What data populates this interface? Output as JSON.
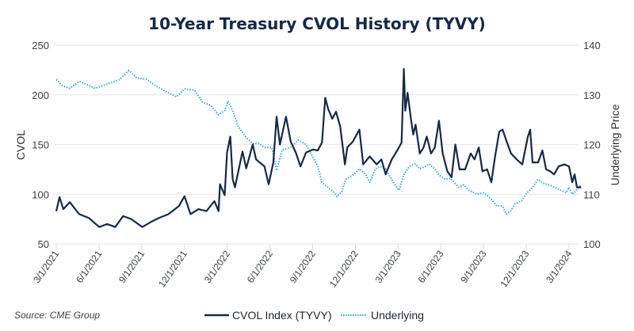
{
  "chart_data": {
    "type": "line",
    "title": "10-Year Treasury CVOL History (TYVY)",
    "ylabel": "CVOL",
    "y2label": "Underlying Price",
    "ylim": [
      50,
      250
    ],
    "y2lim": [
      100,
      140
    ],
    "yticks": [
      "250",
      "200",
      "150",
      "100",
      "50"
    ],
    "y2ticks": [
      "140",
      "130",
      "120",
      "110",
      "100"
    ],
    "xticks": [
      "3/1/2021",
      "6/1/2021",
      "9/1/2021",
      "12/1/2021",
      "3/1/2022",
      "6/1/2022",
      "9/1/2022",
      "12/1/2022",
      "3/1/2023",
      "6/1/2023",
      "9/1/2023",
      "12/1/2023",
      "3/1/2024"
    ],
    "grid": "horizontal",
    "legend_position": "bottom",
    "source": "Source: CME Group",
    "colors": {
      "cvol": "#14294a",
      "underlying": "#29abe2",
      "title": "#14294a"
    },
    "series": [
      {
        "name": "CVOL Index (TYVY)",
        "axis": "left",
        "style": "solid",
        "points": [
          [
            "2021-03-01",
            83
          ],
          [
            "2021-03-08",
            97
          ],
          [
            "2021-03-16",
            85
          ],
          [
            "2021-03-30",
            92
          ],
          [
            "2021-04-19",
            80
          ],
          [
            "2021-05-10",
            76
          ],
          [
            "2021-06-01",
            67
          ],
          [
            "2021-06-18",
            70
          ],
          [
            "2021-07-05",
            67
          ],
          [
            "2021-07-22",
            78
          ],
          [
            "2021-08-08",
            75
          ],
          [
            "2021-09-01",
            67
          ],
          [
            "2021-09-19",
            72
          ],
          [
            "2021-10-06",
            76
          ],
          [
            "2021-10-27",
            80
          ],
          [
            "2021-11-18",
            88
          ],
          [
            "2021-11-30",
            98
          ],
          [
            "2021-12-13",
            80
          ],
          [
            "2021-12-30",
            85
          ],
          [
            "2022-01-16",
            83
          ],
          [
            "2022-02-02",
            93
          ],
          [
            "2022-02-11",
            83
          ],
          [
            "2022-02-14",
            110
          ],
          [
            "2022-02-24",
            99
          ],
          [
            "2022-03-01",
            142
          ],
          [
            "2022-03-08",
            158
          ],
          [
            "2022-03-13",
            115
          ],
          [
            "2022-03-18",
            107
          ],
          [
            "2022-04-03",
            143
          ],
          [
            "2022-04-11",
            126
          ],
          [
            "2022-04-25",
            150
          ],
          [
            "2022-05-02",
            135
          ],
          [
            "2022-05-20",
            128
          ],
          [
            "2022-05-29",
            110
          ],
          [
            "2022-06-08",
            132
          ],
          [
            "2022-06-15",
            178
          ],
          [
            "2022-06-22",
            150
          ],
          [
            "2022-07-05",
            178
          ],
          [
            "2022-07-15",
            153
          ],
          [
            "2022-07-26",
            142
          ],
          [
            "2022-08-05",
            128
          ],
          [
            "2022-08-17",
            142
          ],
          [
            "2022-09-01",
            145
          ],
          [
            "2022-09-11",
            144
          ],
          [
            "2022-09-20",
            152
          ],
          [
            "2022-09-27",
            197
          ],
          [
            "2022-10-03",
            186
          ],
          [
            "2022-10-12",
            176
          ],
          [
            "2022-10-20",
            183
          ],
          [
            "2022-10-29",
            168
          ],
          [
            "2022-11-08",
            130
          ],
          [
            "2022-11-13",
            147
          ],
          [
            "2022-11-25",
            153
          ],
          [
            "2022-12-09",
            165
          ],
          [
            "2022-12-17",
            130
          ],
          [
            "2022-12-31",
            138
          ],
          [
            "2023-01-15",
            130
          ],
          [
            "2023-01-25",
            135
          ],
          [
            "2023-02-03",
            120
          ],
          [
            "2023-02-16",
            135
          ],
          [
            "2023-02-28",
            144
          ],
          [
            "2023-03-09",
            152
          ],
          [
            "2023-03-14",
            226
          ],
          [
            "2023-03-17",
            184
          ],
          [
            "2023-03-22",
            202
          ],
          [
            "2023-03-29",
            176
          ],
          [
            "2023-04-03",
            160
          ],
          [
            "2023-04-08",
            170
          ],
          [
            "2023-04-17",
            141
          ],
          [
            "2023-04-25",
            147
          ],
          [
            "2023-05-02",
            158
          ],
          [
            "2023-05-11",
            141
          ],
          [
            "2023-05-19",
            147
          ],
          [
            "2023-05-28",
            174
          ],
          [
            "2023-06-05",
            141
          ],
          [
            "2023-06-15",
            123
          ],
          [
            "2023-06-24",
            117
          ],
          [
            "2023-07-02",
            150
          ],
          [
            "2023-07-11",
            125
          ],
          [
            "2023-07-23",
            125
          ],
          [
            "2023-08-04",
            141
          ],
          [
            "2023-08-12",
            135
          ],
          [
            "2023-08-21",
            147
          ],
          [
            "2023-08-29",
            123
          ],
          [
            "2023-09-08",
            125
          ],
          [
            "2023-09-17",
            112
          ],
          [
            "2023-09-25",
            138
          ],
          [
            "2023-10-04",
            163
          ],
          [
            "2023-10-11",
            165
          ],
          [
            "2023-10-19",
            154
          ],
          [
            "2023-10-29",
            141
          ],
          [
            "2023-11-10",
            135
          ],
          [
            "2023-11-22",
            130
          ],
          [
            "2023-12-04",
            158
          ],
          [
            "2023-12-09",
            165
          ],
          [
            "2023-12-14",
            132
          ],
          [
            "2023-12-26",
            132
          ],
          [
            "2024-01-04",
            144
          ],
          [
            "2024-01-12",
            125
          ],
          [
            "2024-01-21",
            123
          ],
          [
            "2024-01-29",
            120
          ],
          [
            "2024-02-08",
            128
          ],
          [
            "2024-02-20",
            130
          ],
          [
            "2024-03-01",
            128
          ],
          [
            "2024-03-08",
            112
          ],
          [
            "2024-03-13",
            120
          ],
          [
            "2024-03-18",
            107
          ],
          [
            "2024-03-27",
            107
          ]
        ]
      },
      {
        "name": "Underlying",
        "axis": "right",
        "style": "dotted",
        "points": [
          [
            "2021-03-01",
            133.1
          ],
          [
            "2021-03-13",
            131.9
          ],
          [
            "2021-03-30",
            131.3
          ],
          [
            "2021-04-19",
            132.7
          ],
          [
            "2021-05-10",
            131.9
          ],
          [
            "2021-05-23",
            131.3
          ],
          [
            "2021-06-18",
            132.2
          ],
          [
            "2021-07-13",
            133.0
          ],
          [
            "2021-08-03",
            134.9
          ],
          [
            "2021-08-20",
            133.4
          ],
          [
            "2021-09-11",
            133.1
          ],
          [
            "2021-09-28",
            131.9
          ],
          [
            "2021-10-23",
            130.6
          ],
          [
            "2021-11-13",
            129.6
          ],
          [
            "2021-11-30",
            131.2
          ],
          [
            "2021-12-22",
            130.9
          ],
          [
            "2022-01-08",
            128.5
          ],
          [
            "2022-01-25",
            127.9
          ],
          [
            "2022-02-11",
            126.0
          ],
          [
            "2022-02-24",
            126.8
          ],
          [
            "2022-03-03",
            128.7
          ],
          [
            "2022-03-13",
            126.8
          ],
          [
            "2022-03-25",
            123.6
          ],
          [
            "2022-04-11",
            121.4
          ],
          [
            "2022-04-25",
            120.2
          ],
          [
            "2022-05-07",
            120.2
          ],
          [
            "2022-05-20",
            119.4
          ],
          [
            "2022-06-05",
            119.4
          ],
          [
            "2022-06-15",
            114.8
          ],
          [
            "2022-06-27",
            118.9
          ],
          [
            "2022-07-14",
            119.4
          ],
          [
            "2022-07-31",
            120.9
          ],
          [
            "2022-08-17",
            120.0
          ],
          [
            "2022-09-03",
            117.0
          ],
          [
            "2022-09-11",
            115.6
          ],
          [
            "2022-09-20",
            112.4
          ],
          [
            "2022-09-28",
            111.7
          ],
          [
            "2022-10-15",
            110.4
          ],
          [
            "2022-10-22",
            109.5
          ],
          [
            "2022-11-01",
            110.5
          ],
          [
            "2022-11-10",
            113.0
          ],
          [
            "2022-11-27",
            114.0
          ],
          [
            "2022-12-09",
            115.1
          ],
          [
            "2022-12-22",
            114.0
          ],
          [
            "2022-12-31",
            112.4
          ],
          [
            "2023-01-12",
            115.1
          ],
          [
            "2023-01-22",
            115.6
          ],
          [
            "2023-02-03",
            115.1
          ],
          [
            "2023-02-20",
            112.3
          ],
          [
            "2023-03-04",
            110.8
          ],
          [
            "2023-03-14",
            114.0
          ],
          [
            "2023-03-26",
            115.6
          ],
          [
            "2023-04-07",
            116.1
          ],
          [
            "2023-04-17",
            115.1
          ],
          [
            "2023-04-29",
            115.6
          ],
          [
            "2023-05-07",
            116.1
          ],
          [
            "2023-05-19",
            115.1
          ],
          [
            "2023-05-29",
            113.8
          ],
          [
            "2023-06-10",
            113.0
          ],
          [
            "2023-06-22",
            113.2
          ],
          [
            "2023-07-09",
            111.4
          ],
          [
            "2023-07-19",
            111.9
          ],
          [
            "2023-07-31",
            110.8
          ],
          [
            "2023-08-17",
            110.0
          ],
          [
            "2023-08-31",
            110.3
          ],
          [
            "2023-09-15",
            109.2
          ],
          [
            "2023-09-29",
            107.6
          ],
          [
            "2023-10-11",
            107.6
          ],
          [
            "2023-10-19",
            106.0
          ],
          [
            "2023-10-28",
            106.6
          ],
          [
            "2023-11-07",
            108.1
          ],
          [
            "2023-11-21",
            108.7
          ],
          [
            "2023-12-02",
            110.3
          ],
          [
            "2023-12-14",
            111.4
          ],
          [
            "2023-12-26",
            113.0
          ],
          [
            "2024-01-05",
            112.2
          ],
          [
            "2024-01-17",
            111.9
          ],
          [
            "2024-01-31",
            111.4
          ],
          [
            "2024-02-12",
            110.8
          ],
          [
            "2024-02-24",
            110.3
          ],
          [
            "2024-03-01",
            111.4
          ],
          [
            "2024-03-08",
            110.0
          ],
          [
            "2024-03-17",
            110.8
          ],
          [
            "2024-03-27",
            111.9
          ]
        ]
      }
    ]
  }
}
